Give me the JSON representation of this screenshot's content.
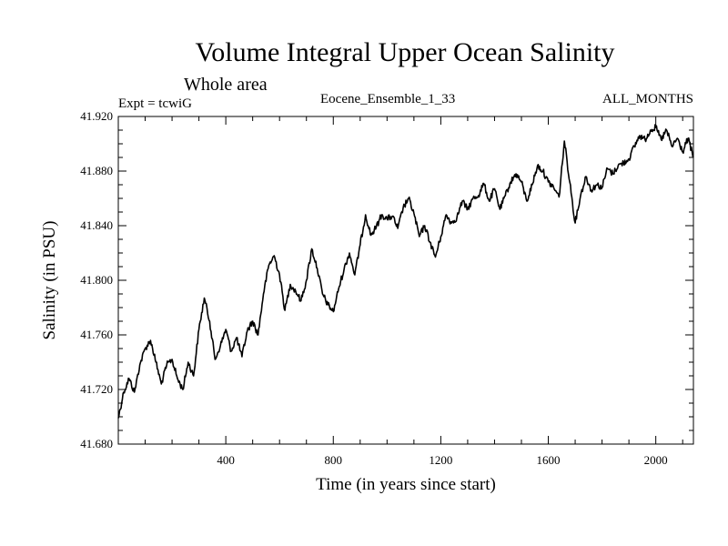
{
  "chart_data": {
    "type": "line",
    "title": "Volume Integral Upper Ocean Salinity",
    "subtitle": "Whole area",
    "expt_label": "Expt = tcwiG",
    "ensemble_label": "Eocene_Ensemble_1_33",
    "months_label": "ALL_MONTHS",
    "xlabel": "Time (in years since start)",
    "ylabel": "Salinity (in PSU)",
    "xlim": [
      0,
      2140
    ],
    "ylim": [
      41.68,
      41.92
    ],
    "xticks": [
      400,
      800,
      1200,
      1600,
      2000
    ],
    "xtick_labels": [
      "400",
      "800",
      "1200",
      "1600",
      "2000"
    ],
    "yticks": [
      41.68,
      41.72,
      41.76,
      41.8,
      41.84,
      41.88,
      41.92
    ],
    "ytick_labels": [
      "41.680",
      "41.720",
      "41.760",
      "41.800",
      "41.840",
      "41.880",
      "41.920"
    ],
    "grid": false,
    "series": [
      {
        "color": "#000000",
        "x": [
          0,
          20,
          40,
          60,
          80,
          100,
          120,
          140,
          160,
          180,
          200,
          220,
          240,
          260,
          280,
          300,
          320,
          340,
          360,
          380,
          400,
          420,
          440,
          460,
          480,
          500,
          520,
          540,
          560,
          580,
          600,
          620,
          640,
          660,
          680,
          700,
          720,
          740,
          760,
          780,
          800,
          820,
          840,
          860,
          880,
          900,
          920,
          940,
          960,
          980,
          1000,
          1020,
          1040,
          1060,
          1080,
          1100,
          1120,
          1140,
          1160,
          1180,
          1200,
          1220,
          1240,
          1260,
          1280,
          1300,
          1320,
          1340,
          1360,
          1380,
          1400,
          1420,
          1440,
          1460,
          1480,
          1500,
          1520,
          1540,
          1560,
          1580,
          1600,
          1620,
          1640,
          1660,
          1680,
          1700,
          1720,
          1740,
          1760,
          1780,
          1800,
          1820,
          1840,
          1860,
          1880,
          1900,
          1920,
          1940,
          1960,
          1980,
          2000,
          2020,
          2040,
          2060,
          2080,
          2100,
          2120,
          2140
        ],
        "y": [
          41.699,
          41.718,
          41.728,
          41.718,
          41.738,
          41.75,
          41.756,
          41.74,
          41.724,
          41.738,
          41.742,
          41.728,
          41.72,
          41.74,
          41.73,
          41.764,
          41.787,
          41.77,
          41.742,
          41.752,
          41.764,
          41.748,
          41.758,
          41.744,
          41.763,
          41.77,
          41.76,
          41.79,
          41.811,
          41.818,
          41.804,
          41.778,
          41.797,
          41.792,
          41.785,
          41.8,
          41.823,
          41.809,
          41.79,
          41.782,
          41.777,
          41.794,
          41.808,
          41.82,
          41.804,
          41.826,
          41.848,
          41.833,
          41.839,
          41.848,
          41.845,
          41.847,
          41.838,
          41.853,
          41.86,
          41.849,
          41.832,
          41.84,
          41.828,
          41.817,
          41.832,
          41.848,
          41.842,
          41.846,
          41.858,
          41.852,
          41.86,
          41.862,
          41.871,
          41.858,
          41.867,
          41.852,
          41.862,
          41.872,
          41.878,
          41.872,
          41.858,
          41.87,
          41.884,
          41.88,
          41.872,
          41.868,
          41.861,
          41.902,
          41.872,
          41.842,
          41.862,
          41.876,
          41.866,
          41.87,
          41.868,
          41.882,
          41.878,
          41.884,
          41.886,
          41.889,
          41.898,
          41.906,
          41.903,
          41.91,
          41.912,
          41.903,
          41.91,
          41.898,
          41.904,
          41.894,
          41.904,
          41.89
        ]
      }
    ]
  }
}
